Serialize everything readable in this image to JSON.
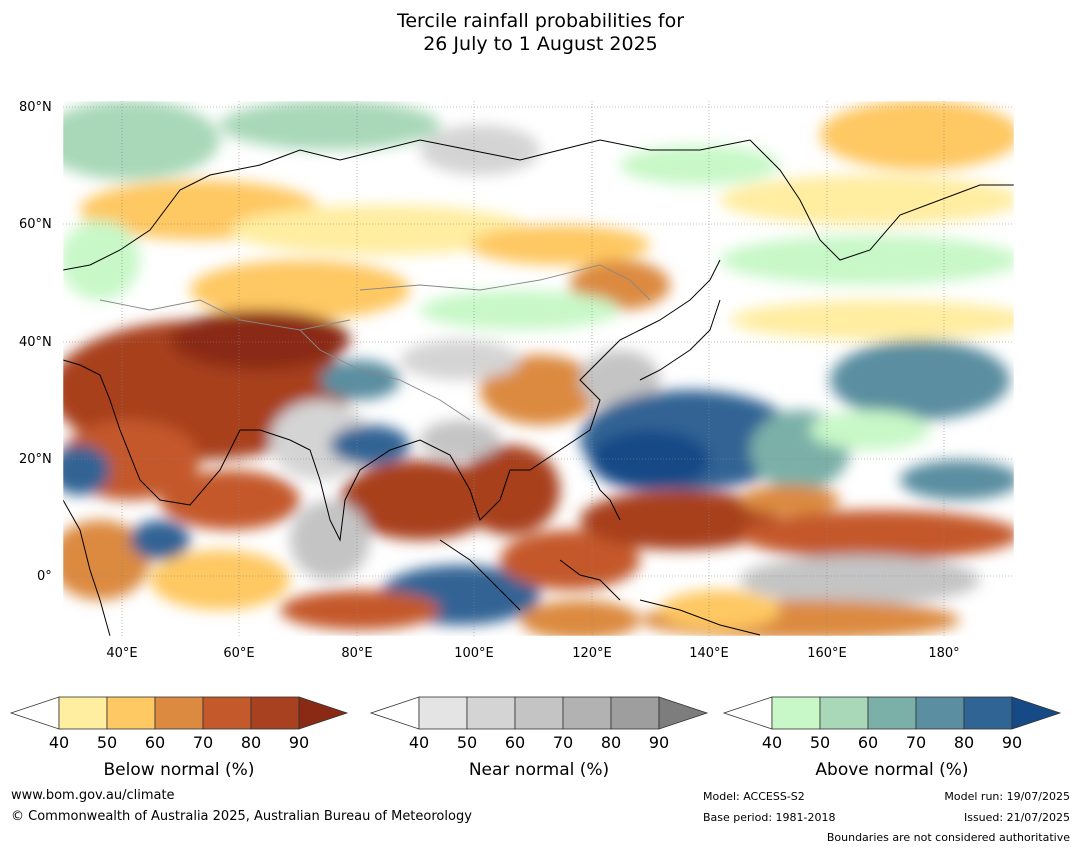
{
  "title": {
    "line1": "Tercile rainfall probabilities for",
    "line2": "26 July to 1 August 2025"
  },
  "map": {
    "lat_labels": [
      "80°N",
      "60°N",
      "40°N",
      "20°N",
      "0°"
    ],
    "lon_labels": [
      "40°E",
      "60°E",
      "80°E",
      "100°E",
      "120°E",
      "140°E",
      "160°E",
      "180°"
    ]
  },
  "colorbars": [
    {
      "title": "Below normal (%)",
      "ticks": [
        "40",
        "50",
        "60",
        "70",
        "80",
        "90"
      ],
      "colors": [
        "#ffffff",
        "#ffeda0",
        "#fec862",
        "#dc8a40",
        "#c4592c",
        "#a8411f",
        "#8a2a14"
      ]
    },
    {
      "title": "Near normal (%)",
      "ticks": [
        "40",
        "50",
        "60",
        "70",
        "80",
        "90"
      ],
      "colors": [
        "#ffffff",
        "#e4e4e4",
        "#d4d4d4",
        "#c4c4c4",
        "#b2b2b2",
        "#9e9e9e",
        "#7d7d7d"
      ]
    },
    {
      "title": "Above normal (%)",
      "ticks": [
        "40",
        "50",
        "60",
        "70",
        "80",
        "90"
      ],
      "colors": [
        "#ffffff",
        "#c8f8c8",
        "#a8d8b8",
        "#7ab0a8",
        "#5a8ea0",
        "#306494",
        "#154a86"
      ]
    }
  ],
  "footer": {
    "website": "www.bom.gov.au/climate",
    "copyright": "© Commonwealth of Australia 2025, Australian Bureau of Meteorology",
    "model": "Model: ACCESS-S2",
    "base_period": "Base period: 1981-2018",
    "model_run": "Model run: 19/07/2025",
    "issued": "Issued: 21/07/2025",
    "disclaimer": "Boundaries are not considered authoritative"
  }
}
